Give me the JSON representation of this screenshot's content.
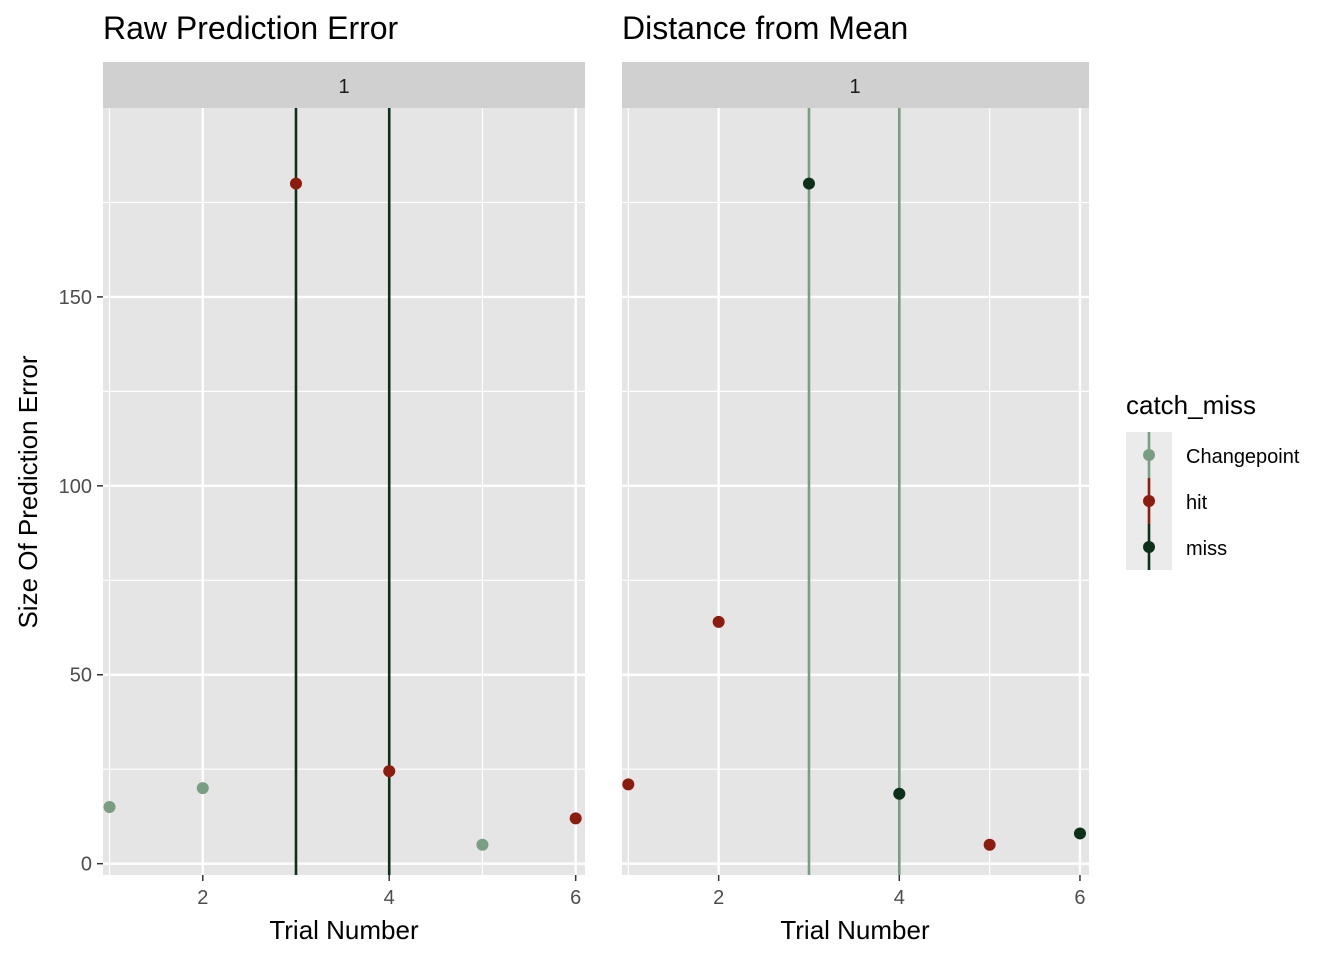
{
  "colors": {
    "Changepoint": "#7a9e82",
    "hit": "#8b1c0e",
    "miss": "#0d3018",
    "panel_bg": "#e5e5e5",
    "strip_bg": "#d0d0d0",
    "grid": "#ffffff"
  },
  "legend": {
    "title": "catch_miss",
    "position": "right",
    "entries": [
      "Changepoint",
      "hit",
      "miss"
    ]
  },
  "chart_data": [
    {
      "type": "scatter",
      "title": "Raw Prediction Error",
      "strip_label": "1",
      "xlabel": "Trial Number",
      "ylabel": "Size Of Prediction Error",
      "xlim": [
        0.93,
        6.1
      ],
      "ylim": [
        -3,
        200
      ],
      "x_ticks": [
        2,
        4,
        6
      ],
      "y_ticks": [
        0,
        50,
        100,
        150
      ],
      "grid": true,
      "points": [
        {
          "x": 1,
          "y": 15,
          "group": "Changepoint"
        },
        {
          "x": 2,
          "y": 20,
          "group": "Changepoint"
        },
        {
          "x": 3,
          "y": 180,
          "group": "hit"
        },
        {
          "x": 4,
          "y": 24.5,
          "group": "hit"
        },
        {
          "x": 5,
          "y": 5,
          "group": "Changepoint"
        },
        {
          "x": 6,
          "y": 12,
          "group": "hit"
        }
      ],
      "vlines": [
        {
          "x": 3,
          "group": "miss"
        },
        {
          "x": 4,
          "group": "miss"
        }
      ]
    },
    {
      "type": "scatter",
      "title": "Distance from Mean",
      "strip_label": "1",
      "xlabel": "Trial Number",
      "ylabel": "",
      "xlim": [
        0.93,
        6.1
      ],
      "ylim": [
        -3,
        200
      ],
      "x_ticks": [
        2,
        4,
        6
      ],
      "y_ticks": [],
      "grid": true,
      "points": [
        {
          "x": 1,
          "y": 21,
          "group": "hit"
        },
        {
          "x": 2,
          "y": 64,
          "group": "hit"
        },
        {
          "x": 3,
          "y": 180,
          "group": "miss"
        },
        {
          "x": 4,
          "y": 18.5,
          "group": "miss"
        },
        {
          "x": 5,
          "y": 5,
          "group": "hit"
        },
        {
          "x": 6,
          "y": 8,
          "group": "miss"
        }
      ],
      "vlines": [
        {
          "x": 3,
          "group": "Changepoint"
        },
        {
          "x": 4,
          "group": "Changepoint"
        }
      ]
    }
  ]
}
